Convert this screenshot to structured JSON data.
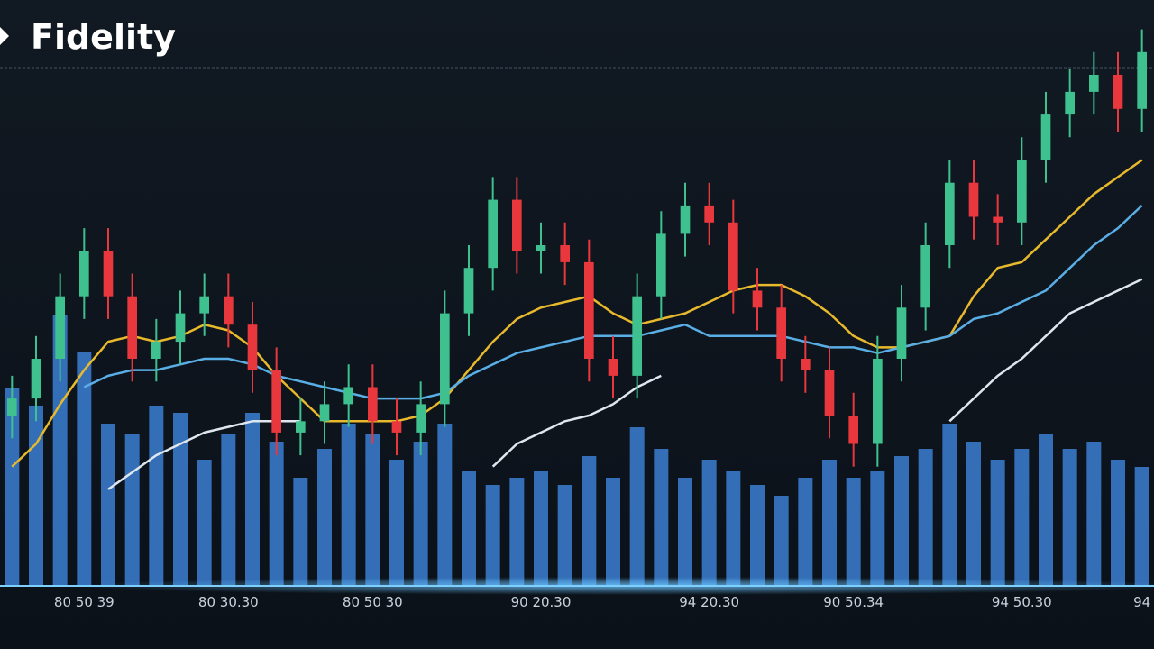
{
  "header": {
    "logo": "Fidelity"
  },
  "chart_data": {
    "type": "candlestick",
    "categories": [
      null,
      null,
      null,
      "80 50 39",
      null,
      null,
      null,
      null,
      null,
      "80 30.30",
      null,
      null,
      null,
      null,
      null,
      "80 50 30",
      null,
      null,
      null,
      null,
      null,
      null,
      "90 20.30",
      null,
      null,
      null,
      null,
      null,
      null,
      "94 20.30",
      null,
      null,
      null,
      null,
      null,
      "90 50.34",
      null,
      null,
      null,
      null,
      null,
      null,
      "94 50.30",
      null,
      null,
      null,
      null,
      "94"
    ],
    "open": [
      30,
      33,
      40,
      51,
      59,
      51,
      40,
      43,
      48,
      51,
      46,
      38,
      27,
      29,
      32,
      35,
      29,
      27,
      32,
      48,
      56,
      68,
      59,
      60,
      57,
      40,
      37,
      51,
      62,
      67,
      64,
      52,
      49,
      40,
      38,
      30,
      25,
      40,
      49,
      60,
      71,
      65,
      64,
      75,
      83,
      87,
      90,
      84
    ],
    "high": [
      37,
      44,
      55,
      63,
      63,
      55,
      47,
      52,
      55,
      55,
      50,
      42,
      33,
      36,
      39,
      39,
      33,
      36,
      52,
      60,
      72,
      72,
      64,
      64,
      61,
      44,
      55,
      66,
      71,
      71,
      68,
      56,
      53,
      44,
      42,
      34,
      44,
      53,
      64,
      75,
      75,
      69,
      79,
      87,
      91,
      94,
      94,
      98
    ],
    "low": [
      26,
      29,
      36,
      47,
      47,
      36,
      36,
      39,
      44,
      42,
      34,
      23,
      23,
      25,
      28,
      25,
      23,
      23,
      28,
      44,
      52,
      55,
      55,
      53,
      36,
      33,
      33,
      47,
      58,
      60,
      48,
      45,
      36,
      34,
      26,
      21,
      21,
      36,
      45,
      56,
      61,
      60,
      60,
      71,
      79,
      83,
      80,
      80
    ],
    "close": [
      33,
      40,
      51,
      59,
      51,
      40,
      43,
      48,
      51,
      46,
      38,
      27,
      29,
      32,
      35,
      29,
      27,
      32,
      48,
      56,
      68,
      59,
      60,
      57,
      40,
      37,
      51,
      62,
      67,
      64,
      52,
      49,
      40,
      38,
      30,
      25,
      40,
      49,
      60,
      71,
      65,
      64,
      75,
      83,
      87,
      90,
      84,
      94
    ],
    "ylim": [
      0,
      100
    ],
    "up_color": "#3fc08f",
    "down_color": "#e8373d",
    "volume": {
      "color": "#3b7fd2",
      "y2lim": [
        0,
        100
      ],
      "values": [
        55,
        50,
        75,
        65,
        45,
        42,
        50,
        48,
        35,
        42,
        48,
        40,
        30,
        38,
        45,
        42,
        35,
        40,
        45,
        32,
        28,
        30,
        32,
        28,
        36,
        30,
        44,
        38,
        30,
        35,
        32,
        28,
        25,
        30,
        35,
        30,
        32,
        36,
        38,
        45,
        40,
        35,
        38,
        42,
        38,
        40,
        35,
        33
      ]
    },
    "lines": [
      {
        "color": "#e8b92c",
        "values": [
          21,
          25,
          32,
          38,
          43,
          44,
          43,
          44,
          46,
          45,
          42,
          37,
          33,
          29,
          29,
          29,
          29,
          30,
          33,
          38,
          43,
          47,
          49,
          50,
          51,
          48,
          46,
          47,
          48,
          50,
          52,
          53,
          53,
          51,
          48,
          44,
          42,
          42,
          43,
          44,
          51,
          56,
          57,
          61,
          65,
          69,
          72,
          75
        ]
      },
      {
        "color": "#5aaee6",
        "values": [
          null,
          null,
          null,
          35,
          37,
          38,
          38,
          39,
          40,
          40,
          39,
          37,
          36,
          35,
          34,
          33,
          33,
          33,
          34,
          37,
          39,
          41,
          42,
          43,
          44,
          44,
          44,
          45,
          46,
          44,
          44,
          44,
          44,
          43,
          42,
          42,
          41,
          42,
          43,
          44,
          47,
          48,
          50,
          52,
          56,
          60,
          63,
          67
        ]
      },
      {
        "color": "#dfe6ee",
        "values": [
          null,
          null,
          null,
          null,
          17,
          20,
          23,
          25,
          27,
          28,
          29,
          29,
          29,
          null,
          null,
          null,
          null,
          null,
          null,
          null,
          21,
          25,
          27,
          29,
          30,
          32,
          35,
          37,
          null,
          null,
          null,
          null,
          null,
          null,
          null,
          null,
          null,
          null,
          null,
          29,
          33,
          37,
          40,
          44,
          48,
          50,
          52,
          54
        ]
      }
    ]
  }
}
